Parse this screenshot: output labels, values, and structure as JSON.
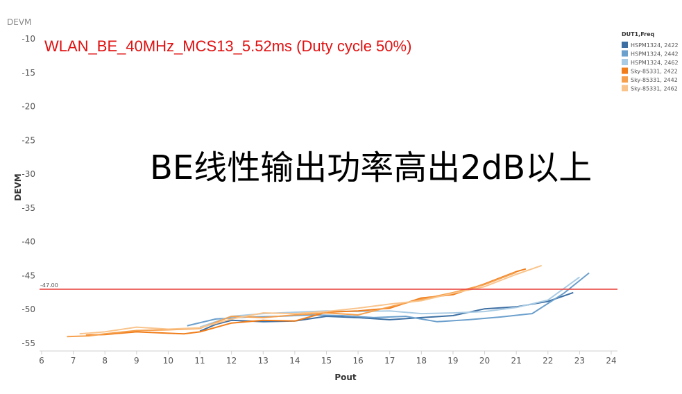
{
  "chart_data": {
    "type": "line",
    "top_label": "DEVM",
    "title": "WLAN_BE_40MHz_MCS13_5.52ms (Duty cycle 50%)",
    "annotation": "BE线性输出功率高出2dB以上",
    "xlabel": "Pout",
    "ylabel": "DEVM",
    "xlim": [
      6,
      24
    ],
    "ylim": [
      -56,
      -10
    ],
    "xticks": [
      6,
      7,
      8,
      9,
      10,
      11,
      12,
      13,
      14,
      15,
      16,
      17,
      18,
      19,
      20,
      21,
      22,
      23,
      24
    ],
    "yticks": [
      -10,
      -15,
      -20,
      -25,
      -30,
      -35,
      -40,
      -45,
      -50,
      -55
    ],
    "grid": false,
    "reference_line": {
      "value": -47,
      "label": "-47.00",
      "color": "#e8413c"
    },
    "legend": {
      "title": "DUT1,Freq",
      "position": "top-right"
    },
    "series": [
      {
        "name": "HSPM1324, 2422",
        "color": "#3d6fa3",
        "x": [
          11.0,
          11.5,
          12.0,
          13.0,
          14.0,
          15.0,
          16.0,
          17.0,
          18.0,
          19.0,
          20.0,
          21.0,
          22.0,
          22.8
        ],
        "y": [
          -53.2,
          -52.2,
          -51.6,
          -51.8,
          -51.7,
          -51.0,
          -51.2,
          -51.5,
          -51.2,
          -50.9,
          -49.9,
          -49.6,
          -48.8,
          -47.5
        ]
      },
      {
        "name": "HSPM1324, 2442",
        "color": "#6b9fcc",
        "x": [
          10.6,
          11.5,
          12.5,
          13.5,
          14.5,
          15.5,
          16.5,
          17.5,
          18.5,
          19.5,
          20.5,
          21.5,
          22.5,
          23.3
        ],
        "y": [
          -52.4,
          -51.4,
          -51.1,
          -51.0,
          -50.8,
          -50.9,
          -51.2,
          -51.0,
          -51.8,
          -51.5,
          -51.1,
          -50.6,
          -47.6,
          -44.6
        ]
      },
      {
        "name": "HSPM1324, 2462",
        "color": "#a9cbe4",
        "x": [
          11.0,
          12.0,
          13.0,
          14.0,
          15.0,
          16.0,
          17.0,
          18.0,
          19.0,
          20.0,
          21.0,
          22.0,
          23.0
        ],
        "y": [
          -52.6,
          -51.0,
          -50.6,
          -50.4,
          -50.2,
          -50.3,
          -50.2,
          -50.6,
          -50.5,
          -50.3,
          -49.7,
          -48.6,
          -45.2
        ]
      },
      {
        "name": "Sky-85331, 2422",
        "color": "#f07d1a",
        "x": [
          7.4,
          8.0,
          9.0,
          10.0,
          10.5,
          11.0,
          12.0,
          13.0,
          14.0,
          15.0,
          16.0,
          17.0,
          18.0,
          19.0,
          20.0,
          21.0,
          21.3
        ],
        "y": [
          -53.8,
          -53.7,
          -53.3,
          -53.5,
          -53.6,
          -53.3,
          -52.0,
          -51.6,
          -51.7,
          -50.4,
          -50.2,
          -49.8,
          -48.3,
          -47.8,
          -46.2,
          -44.4,
          -44.0
        ]
      },
      {
        "name": "Sky-85331, 2442",
        "color": "#f6a04d",
        "x": [
          6.8,
          7.5,
          8.0,
          9.0,
          10.0,
          11.0,
          12.0,
          13.0,
          14.0,
          15.0,
          16.0,
          17.0,
          18.0,
          19.0,
          20.0,
          21.0
        ],
        "y": [
          -54.0,
          -53.9,
          -53.6,
          -53.1,
          -53.0,
          -52.8,
          -51.0,
          -51.2,
          -50.8,
          -50.5,
          -50.8,
          -49.6,
          -48.5,
          -47.5,
          -46.3,
          -44.5
        ]
      },
      {
        "name": "Sky-85331, 2462",
        "color": "#f9c48c",
        "x": [
          7.2,
          8.0,
          9.0,
          10.0,
          11.0,
          12.0,
          13.0,
          14.0,
          15.0,
          16.0,
          17.0,
          18.0,
          19.0,
          20.0,
          21.0,
          21.8
        ],
        "y": [
          -53.6,
          -53.3,
          -52.6,
          -52.9,
          -52.7,
          -51.4,
          -50.5,
          -50.6,
          -50.3,
          -49.8,
          -49.2,
          -48.7,
          -47.6,
          -46.6,
          -44.8,
          -43.5
        ]
      }
    ]
  }
}
